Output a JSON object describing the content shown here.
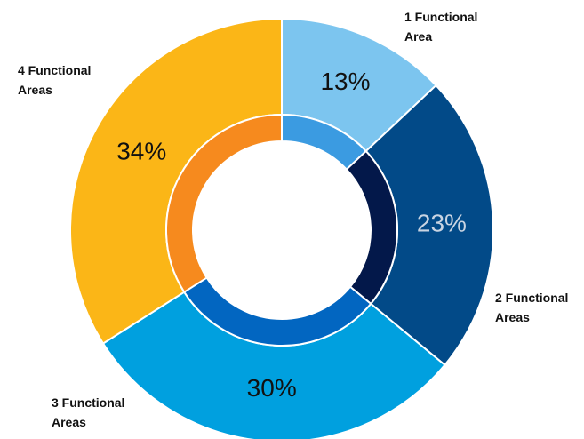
{
  "chart_data": {
    "type": "donut",
    "categories": [
      "1 Functional Area",
      "2 Functional Areas",
      "3 Functional Areas",
      "4 Functional Areas"
    ],
    "values": [
      13,
      23,
      30,
      34
    ],
    "value_labels": [
      "13%",
      "23%",
      "30%",
      "34%"
    ],
    "colors": [
      "#7cc5ef",
      "#024a88",
      "#00a0df",
      "#fbb617"
    ],
    "inner_colors": [
      "#3b9be1",
      "#03184a",
      "#0266c1",
      "#f68a1e"
    ]
  }
}
